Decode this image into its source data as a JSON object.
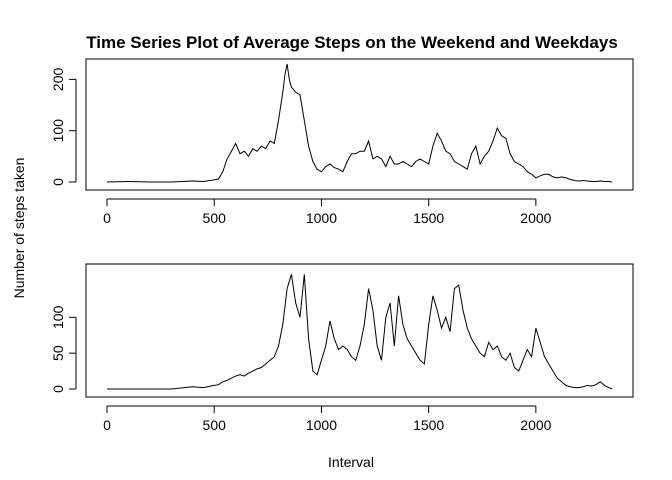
{
  "title": "Time Series Plot of Average Steps on the Weekend and Weekdays",
  "xlabel": "Interval",
  "ylabel": "Number of steps taken",
  "chart_data": [
    {
      "type": "line",
      "panel": "top",
      "xlim": [
        0,
        2355
      ],
      "ylim": [
        0,
        230
      ],
      "xticks": [
        0,
        500,
        1000,
        1500,
        2000
      ],
      "yticks": [
        0,
        100,
        200
      ],
      "grid": false,
      "x": [
        0,
        100,
        200,
        300,
        400,
        450,
        480,
        500,
        520,
        540,
        560,
        580,
        600,
        620,
        640,
        660,
        680,
        700,
        720,
        740,
        760,
        780,
        800,
        820,
        830,
        840,
        850,
        860,
        880,
        900,
        920,
        940,
        960,
        980,
        1000,
        1020,
        1040,
        1060,
        1080,
        1100,
        1120,
        1140,
        1160,
        1180,
        1200,
        1220,
        1240,
        1260,
        1280,
        1300,
        1320,
        1340,
        1360,
        1380,
        1400,
        1420,
        1440,
        1460,
        1480,
        1500,
        1520,
        1540,
        1560,
        1580,
        1600,
        1620,
        1640,
        1660,
        1680,
        1700,
        1720,
        1740,
        1760,
        1780,
        1800,
        1820,
        1840,
        1860,
        1880,
        1900,
        1920,
        1940,
        1960,
        1980,
        2000,
        2020,
        2040,
        2060,
        2080,
        2100,
        2120,
        2140,
        2160,
        2180,
        2200,
        2220,
        2240,
        2260,
        2280,
        2300,
        2320,
        2340,
        2355
      ],
      "values": [
        0,
        1,
        0,
        0,
        2,
        1,
        3,
        4,
        6,
        20,
        45,
        60,
        75,
        55,
        60,
        50,
        65,
        60,
        70,
        65,
        80,
        75,
        120,
        175,
        210,
        230,
        200,
        185,
        175,
        170,
        120,
        70,
        40,
        25,
        20,
        30,
        35,
        28,
        25,
        20,
        40,
        55,
        55,
        60,
        60,
        80,
        45,
        50,
        45,
        30,
        50,
        35,
        35,
        40,
        35,
        30,
        40,
        45,
        40,
        35,
        70,
        95,
        80,
        60,
        55,
        40,
        35,
        30,
        25,
        55,
        70,
        35,
        50,
        60,
        80,
        105,
        90,
        85,
        55,
        40,
        35,
        30,
        20,
        15,
        8,
        12,
        15,
        15,
        10,
        8,
        10,
        8,
        5,
        3,
        2,
        3,
        2,
        1,
        1,
        2,
        1,
        1,
        0
      ]
    },
    {
      "type": "line",
      "panel": "bottom",
      "xlim": [
        0,
        2355
      ],
      "ylim": [
        0,
        166
      ],
      "xticks": [
        0,
        500,
        1000,
        1500,
        2000
      ],
      "yticks": [
        0,
        50,
        100
      ],
      "grid": false,
      "x": [
        0,
        100,
        200,
        300,
        400,
        450,
        500,
        520,
        540,
        560,
        580,
        600,
        620,
        640,
        660,
        680,
        700,
        720,
        740,
        760,
        780,
        800,
        820,
        840,
        860,
        880,
        900,
        920,
        940,
        960,
        980,
        1000,
        1020,
        1040,
        1060,
        1080,
        1100,
        1120,
        1140,
        1160,
        1180,
        1200,
        1220,
        1240,
        1260,
        1280,
        1300,
        1320,
        1340,
        1360,
        1380,
        1400,
        1420,
        1440,
        1460,
        1480,
        1500,
        1520,
        1540,
        1560,
        1580,
        1600,
        1620,
        1640,
        1660,
        1680,
        1700,
        1720,
        1740,
        1760,
        1780,
        1800,
        1820,
        1840,
        1860,
        1880,
        1900,
        1920,
        1940,
        1960,
        1980,
        2000,
        2020,
        2040,
        2060,
        2080,
        2100,
        2120,
        2140,
        2160,
        2180,
        2200,
        2220,
        2240,
        2260,
        2280,
        2300,
        2320,
        2340,
        2355
      ],
      "values": [
        0,
        0,
        0,
        0,
        3,
        2,
        5,
        6,
        10,
        12,
        15,
        18,
        20,
        18,
        22,
        25,
        28,
        30,
        35,
        40,
        45,
        60,
        90,
        140,
        160,
        120,
        100,
        160,
        70,
        25,
        20,
        40,
        60,
        95,
        70,
        55,
        60,
        55,
        45,
        40,
        60,
        90,
        140,
        110,
        60,
        40,
        100,
        120,
        60,
        130,
        90,
        70,
        60,
        50,
        40,
        35,
        90,
        130,
        110,
        85,
        100,
        80,
        140,
        145,
        110,
        85,
        70,
        60,
        50,
        45,
        65,
        55,
        60,
        45,
        40,
        50,
        30,
        25,
        40,
        55,
        45,
        85,
        65,
        45,
        35,
        25,
        15,
        10,
        5,
        3,
        2,
        2,
        3,
        5,
        4,
        6,
        10,
        5,
        2,
        0
      ]
    }
  ]
}
